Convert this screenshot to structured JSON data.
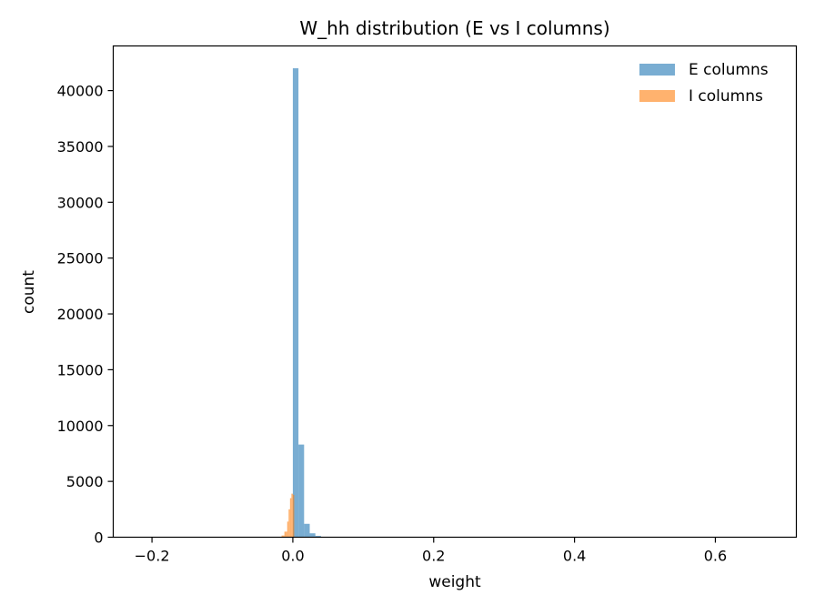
{
  "chart_data": {
    "type": "bar",
    "title": "W_hh distribution (E vs I columns)",
    "xlabel": "weight",
    "ylabel": "count",
    "xlim": [
      -0.255,
      0.715
    ],
    "ylim": [
      0,
      44000
    ],
    "xticks": [
      -0.2,
      0.0,
      0.2,
      0.4,
      0.6
    ],
    "xtick_labels": [
      "−0.2",
      "0.0",
      "0.2",
      "0.4",
      "0.6"
    ],
    "yticks": [
      0,
      5000,
      10000,
      15000,
      20000,
      25000,
      30000,
      35000,
      40000
    ],
    "ytick_labels": [
      "0",
      "5000",
      "10000",
      "15000",
      "20000",
      "25000",
      "30000",
      "35000",
      "40000"
    ],
    "grid": false,
    "legend_position": "top-right",
    "series": [
      {
        "name": "E columns",
        "color": "#1f77b4",
        "opacity": 0.6,
        "bins": [
          {
            "x0": 0.0,
            "x1": 0.008,
            "count": 42000
          },
          {
            "x0": 0.008,
            "x1": 0.016,
            "count": 8300
          },
          {
            "x0": 0.016,
            "x1": 0.024,
            "count": 1200
          },
          {
            "x0": 0.024,
            "x1": 0.032,
            "count": 350
          },
          {
            "x0": 0.032,
            "x1": 0.04,
            "count": 120
          },
          {
            "x0": 0.04,
            "x1": 0.048,
            "count": 40
          }
        ]
      },
      {
        "name": "I columns",
        "color": "#ff7f0e",
        "opacity": 0.6,
        "bins": [
          {
            "x0": -0.016,
            "x1": -0.012,
            "count": 150
          },
          {
            "x0": -0.012,
            "x1": -0.008,
            "count": 500
          },
          {
            "x0": -0.008,
            "x1": -0.006,
            "count": 1400
          },
          {
            "x0": -0.006,
            "x1": -0.004,
            "count": 2500
          },
          {
            "x0": -0.004,
            "x1": -0.002,
            "count": 3500
          },
          {
            "x0": -0.002,
            "x1": 0.0,
            "count": 3900
          },
          {
            "x0": 0.0,
            "x1": 0.002,
            "count": 3800
          }
        ]
      }
    ]
  }
}
